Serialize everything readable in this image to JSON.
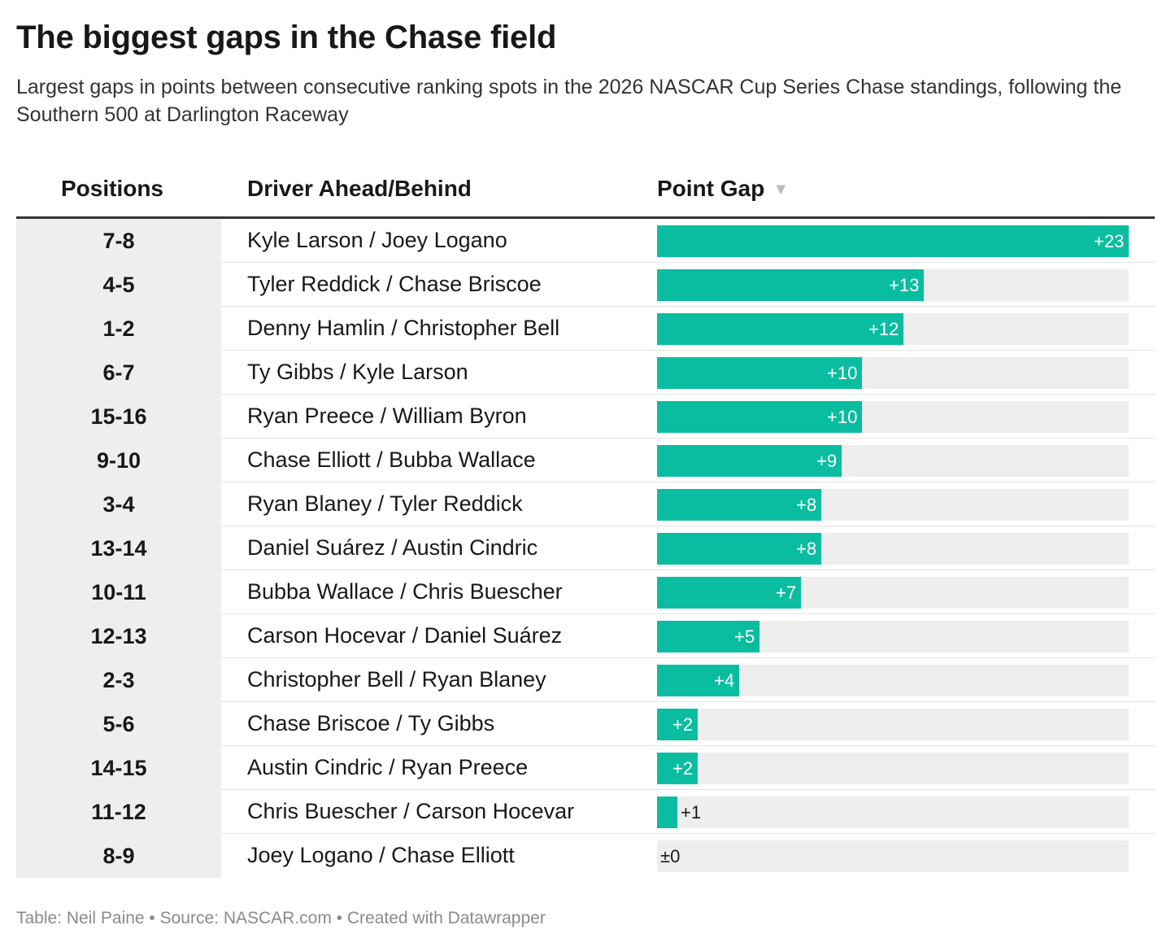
{
  "title": "The biggest gaps in the Chase field",
  "subtitle": "Largest gaps in points between consecutive ranking spots in the 2026 NASCAR Cup Series Chase standings, following the Southern 500 at Darlington Raceway",
  "columns": {
    "positions": "Positions",
    "drivers": "Driver Ahead/Behind",
    "gap": "Point Gap",
    "sort_icon": "sort-descending-icon"
  },
  "colors": {
    "bar": "#0bbda0",
    "track": "#eeeeee",
    "header_rule": "#333333"
  },
  "footer": "Table: Neil Paine • Source: NASCAR.com • Created with Datawrapper",
  "chart_data": {
    "type": "table",
    "bar_scale_max": 23,
    "rows": [
      {
        "positions": "7-8",
        "drivers": "Kyle Larson / Joey Logano",
        "gap": 23,
        "gap_label": "+23"
      },
      {
        "positions": "4-5",
        "drivers": "Tyler Reddick / Chase Briscoe",
        "gap": 13,
        "gap_label": "+13"
      },
      {
        "positions": "1-2",
        "drivers": "Denny Hamlin / Christopher Bell",
        "gap": 12,
        "gap_label": "+12"
      },
      {
        "positions": "6-7",
        "drivers": "Ty Gibbs / Kyle Larson",
        "gap": 10,
        "gap_label": "+10"
      },
      {
        "positions": "15-16",
        "drivers": "Ryan Preece / William Byron",
        "gap": 10,
        "gap_label": "+10"
      },
      {
        "positions": "9-10",
        "drivers": "Chase Elliott / Bubba Wallace",
        "gap": 9,
        "gap_label": "+9"
      },
      {
        "positions": "3-4",
        "drivers": "Ryan Blaney / Tyler Reddick",
        "gap": 8,
        "gap_label": "+8"
      },
      {
        "positions": "13-14",
        "drivers": "Daniel Suárez / Austin Cindric",
        "gap": 8,
        "gap_label": "+8"
      },
      {
        "positions": "10-11",
        "drivers": "Bubba Wallace / Chris Buescher",
        "gap": 7,
        "gap_label": "+7"
      },
      {
        "positions": "12-13",
        "drivers": "Carson Hocevar / Daniel Suárez",
        "gap": 5,
        "gap_label": "+5"
      },
      {
        "positions": "2-3",
        "drivers": "Christopher Bell / Ryan Blaney",
        "gap": 4,
        "gap_label": "+4"
      },
      {
        "positions": "5-6",
        "drivers": "Chase Briscoe / Ty Gibbs",
        "gap": 2,
        "gap_label": "+2"
      },
      {
        "positions": "14-15",
        "drivers": "Austin Cindric / Ryan Preece",
        "gap": 2,
        "gap_label": "+2"
      },
      {
        "positions": "11-12",
        "drivers": "Chris Buescher / Carson Hocevar",
        "gap": 1,
        "gap_label": "+1"
      },
      {
        "positions": "8-9",
        "drivers": "Joey Logano / Chase Elliott",
        "gap": 0,
        "gap_label": "±0"
      }
    ]
  }
}
